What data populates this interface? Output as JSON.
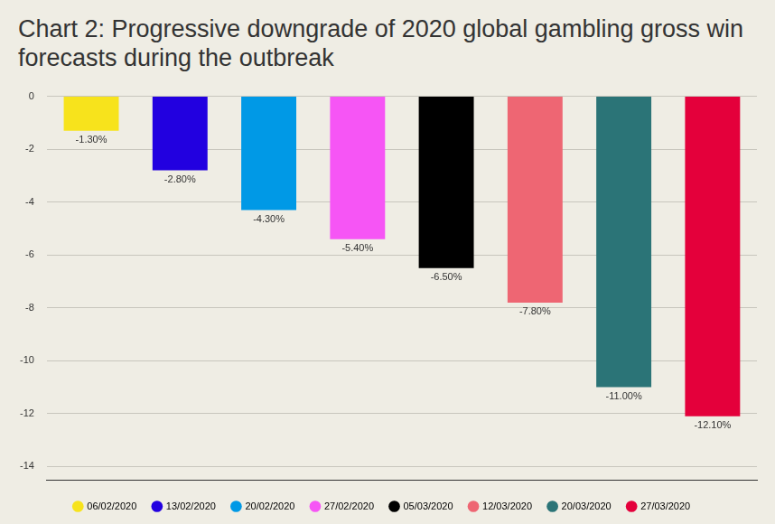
{
  "chart_data": {
    "type": "bar",
    "title": "Chart 2: Progressive downgrade of 2020 global gambling gross win forecasts during the outbreak",
    "categories": [
      "06/02/2020",
      "13/02/2020",
      "20/02/2020",
      "27/02/2020",
      "05/03/2020",
      "12/03/2020",
      "20/03/2020",
      "27/03/2020"
    ],
    "values": [
      -1.3,
      -2.8,
      -4.3,
      -5.4,
      -6.5,
      -7.8,
      -11,
      -12.1
    ],
    "value_labels": [
      "-1.30%",
      "-2.80%",
      "-4.30%",
      "-5.40%",
      "-6.50%",
      "-7.80%",
      "-11.00%",
      "-12.10%"
    ],
    "colors": [
      "#f7e31c",
      "#2200e0",
      "#0099e6",
      "#f655f5",
      "#000000",
      "#ee6673",
      "#2b7477",
      "#e4003b"
    ],
    "ylim": [
      -14.5,
      0
    ],
    "yticks": [
      0,
      -2,
      -4,
      -6,
      -8,
      -10,
      -12,
      -14
    ],
    "grid": true,
    "data_labels": true,
    "tick_labels": "y",
    "legend": "bottom"
  }
}
